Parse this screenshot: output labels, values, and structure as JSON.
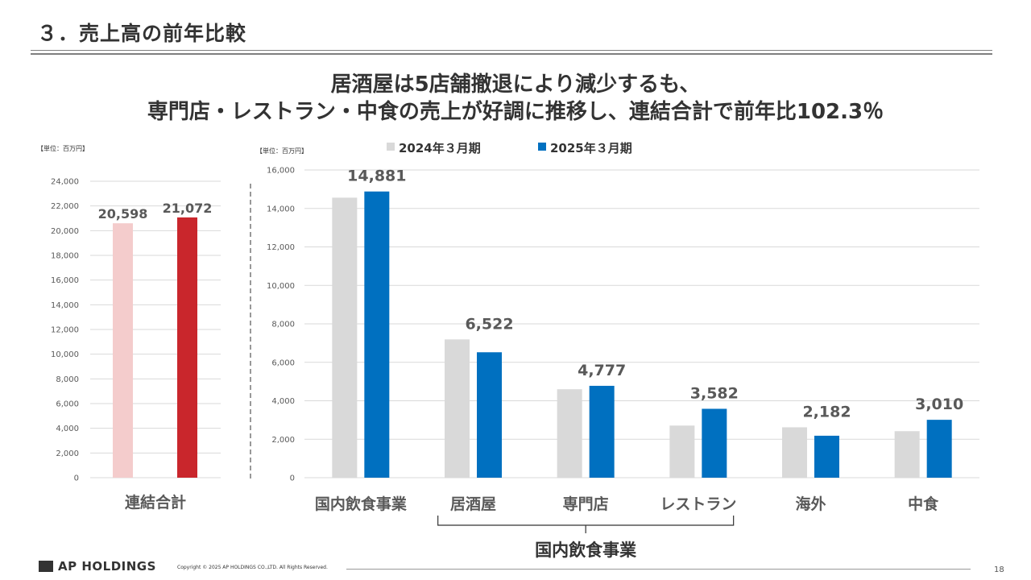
{
  "slide": {
    "title": "３．売上高の前年比較",
    "headline_line1": "居酒屋は5店舗撤退により減少するも、",
    "headline_line2": "専門店・レストラン・中食の売上が好調に推移し、連結合計で前年比102.3％",
    "page_number": "18"
  },
  "footer": {
    "brand": "AP HOLDINGS",
    "copyright": "Copyright © 2025 AP HOLDINGS CO.,LTD. All Rights Reserved."
  },
  "colors": {
    "prev_left": "#f4cccc",
    "curr_left": "#c9262c",
    "prev_right": "#d9d9d9",
    "curr_right": "#0070c0",
    "axis_text": "#595959",
    "grid": "#d9d9d9"
  },
  "chart_data": [
    {
      "type": "bar",
      "unit_label": "【単位：百万円】",
      "categories": [
        "連結合計"
      ],
      "series": [
        {
          "name": "2024年３月期",
          "values": [
            20598
          ]
        },
        {
          "name": "2025年３月期",
          "values": [
            21072
          ]
        }
      ],
      "data_labels": [
        "20,598",
        "21,072"
      ],
      "yticks": [
        "0",
        "2,000",
        "4,000",
        "6,000",
        "8,000",
        "10,000",
        "12,000",
        "14,000",
        "16,000",
        "18,000",
        "20,000",
        "22,000",
        "24,000"
      ],
      "ylim": [
        0,
        24000
      ],
      "grid": true
    },
    {
      "type": "bar",
      "unit_label": "【単位：百万円】",
      "categories": [
        "国内飲食事業",
        "居酒屋",
        "専門店",
        "レストラン",
        "海外",
        "中食"
      ],
      "series": [
        {
          "name": "2024年３月期",
          "values": [
            14560,
            7190,
            4600,
            2710,
            2620,
            2420
          ]
        },
        {
          "name": "2025年３月期",
          "values": [
            14881,
            6522,
            4777,
            3582,
            2182,
            3010
          ]
        }
      ],
      "data_labels": [
        "14,881",
        "6,522",
        "4,777",
        "3,582",
        "2,182",
        "3,010"
      ],
      "yticks": [
        "0",
        "2,000",
        "4,000",
        "6,000",
        "8,000",
        "10,000",
        "12,000",
        "14,000",
        "16,000"
      ],
      "ylim": [
        0,
        16000
      ],
      "grid": true,
      "legend": "top",
      "group_label": "国内飲食事業"
    }
  ]
}
